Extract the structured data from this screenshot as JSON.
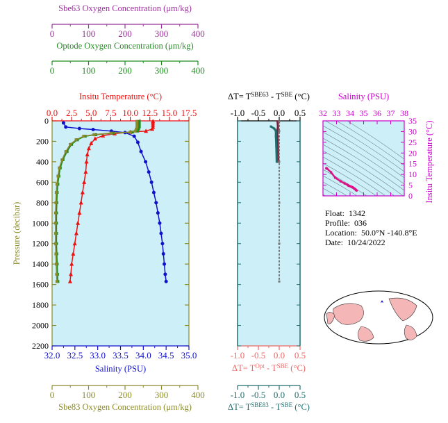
{
  "colors": {
    "sbe63": "#993399",
    "optode": "#1f8c1f",
    "temperature": "#ee1111",
    "salinity": "#1111cc",
    "sbe83": "#8a8a2a",
    "pressure": "#8a8a2a",
    "dt_opt": "#ee6666",
    "dt_sbe83": "#1f6e6e",
    "ts_axis": "#cc00cc",
    "panel_bg": "#cdeff8"
  },
  "info": {
    "float_label": "Float:",
    "float_value": "1342",
    "profile_label": "Profile:",
    "profile_value": "036",
    "location_label": "Location:",
    "location_value": "50.0°N  -140.8°E",
    "date_label": "Date:",
    "date_value": "10/24/2022"
  },
  "chart_data": [
    {
      "type": "line",
      "id": "main-profile",
      "y_axis": {
        "label": "Pressure (decibar)",
        "range": [
          0,
          2200
        ],
        "inverted": true,
        "ticks": [
          "0",
          "200",
          "400",
          "600",
          "800",
          "1000",
          "1200",
          "1400",
          "1600",
          "1800",
          "2000",
          "2200"
        ]
      },
      "axes": {
        "sbe63": {
          "label": "Sbe63 Oxygen Concentration (μm/kg)",
          "range": [
            0,
            400
          ],
          "ticks": [
            "0",
            "100",
            "200",
            "300",
            "400"
          ]
        },
        "optode": {
          "label": "Optode Oxygen Concentration (μm/kg)",
          "range": [
            0,
            400
          ],
          "ticks": [
            "0",
            "100",
            "200",
            "300",
            "400"
          ]
        },
        "temperature": {
          "label": "Insitu Temperature (°C)",
          "range": [
            0,
            17.5
          ],
          "ticks": [
            "0.0",
            "2.5",
            "5.0",
            "7.5",
            "10.0",
            "12.5",
            "15.0",
            "17.5"
          ]
        },
        "salinity": {
          "label": "Salinity (PSU)",
          "range": [
            32.0,
            35.0
          ],
          "ticks": [
            "32.0",
            "32.5",
            "33.0",
            "33.5",
            "34.0",
            "34.5",
            "35.0"
          ]
        },
        "sbe83": {
          "label": "Sbe83 Oxygen Concentration (μm/kg)",
          "range": [
            0,
            400
          ],
          "ticks": [
            "0",
            "100",
            "200",
            "300",
            "400"
          ]
        }
      },
      "series": [
        {
          "axis": "temperature",
          "marker": "triangle",
          "points": [
            [
              12.9,
              5
            ],
            [
              12.9,
              20
            ],
            [
              12.9,
              40
            ],
            [
              12.9,
              60
            ],
            [
              12.8,
              80
            ],
            [
              12.0,
              100
            ],
            [
              10.0,
              110
            ],
            [
              8.0,
              125
            ],
            [
              6.5,
              145
            ],
            [
              5.5,
              175
            ],
            [
              5.0,
              220
            ],
            [
              4.7,
              270
            ],
            [
              4.5,
              330
            ],
            [
              4.4,
              400
            ],
            [
              4.3,
              500
            ],
            [
              4.1,
              600
            ],
            [
              3.9,
              700
            ],
            [
              3.7,
              800
            ],
            [
              3.5,
              900
            ],
            [
              3.3,
              1000
            ],
            [
              3.1,
              1100
            ],
            [
              2.9,
              1200
            ],
            [
              2.7,
              1300
            ],
            [
              2.5,
              1400
            ],
            [
              2.4,
              1500
            ],
            [
              2.3,
              1570
            ]
          ]
        },
        {
          "axis": "salinity",
          "marker": "circle",
          "points": [
            [
              32.25,
              20
            ],
            [
              32.3,
              60
            ],
            [
              32.6,
              75
            ],
            [
              32.9,
              85
            ],
            [
              33.3,
              100
            ],
            [
              33.6,
              115
            ],
            [
              33.8,
              150
            ],
            [
              33.88,
              210
            ],
            [
              33.95,
              300
            ],
            [
              34.05,
              400
            ],
            [
              34.12,
              500
            ],
            [
              34.18,
              600
            ],
            [
              34.23,
              700
            ],
            [
              34.28,
              800
            ],
            [
              34.32,
              900
            ],
            [
              34.36,
              1000
            ],
            [
              34.39,
              1100
            ],
            [
              34.42,
              1200
            ],
            [
              34.44,
              1300
            ],
            [
              34.46,
              1400
            ],
            [
              34.48,
              1500
            ],
            [
              34.5,
              1570
            ]
          ]
        },
        {
          "axis": "sbe63",
          "marker": "square",
          "points": [
            [
              250,
              5
            ],
            [
              250,
              20
            ],
            [
              250,
              40
            ],
            [
              250,
              60
            ],
            [
              248,
              80
            ],
            [
              245,
              100
            ],
            [
              230,
              110
            ],
            [
              175,
              120
            ],
            [
              125,
              135
            ],
            [
              95,
              150
            ],
            [
              72,
              185
            ],
            [
              55,
              230
            ],
            [
              42,
              300
            ],
            [
              30,
              380
            ],
            [
              22,
              460
            ],
            [
              18,
              540
            ],
            [
              15,
              620
            ],
            [
              13,
              700
            ],
            [
              12,
              800
            ],
            [
              11,
              900
            ],
            [
              11,
              1000
            ],
            [
              11,
              1100
            ],
            [
              11,
              1200
            ],
            [
              12,
              1300
            ],
            [
              13,
              1400
            ],
            [
              14,
              1500
            ],
            [
              15,
              1570
            ]
          ]
        },
        {
          "axis": "optode",
          "marker": "square",
          "points": [
            [
              255,
              5
            ],
            [
              255,
              20
            ],
            [
              255,
              40
            ],
            [
              255,
              60
            ],
            [
              253,
              80
            ],
            [
              250,
              100
            ],
            [
              235,
              110
            ],
            [
              178,
              120
            ],
            [
              128,
              135
            ],
            [
              97,
              150
            ],
            [
              74,
              185
            ],
            [
              57,
              230
            ],
            [
              44,
              300
            ],
            [
              32,
              380
            ],
            [
              24,
              460
            ],
            [
              20,
              540
            ],
            [
              17,
              620
            ],
            [
              15,
              700
            ],
            [
              14,
              800
            ],
            [
              13,
              900
            ],
            [
              13,
              1000
            ],
            [
              13,
              1100
            ],
            [
              13,
              1200
            ],
            [
              14,
              1300
            ],
            [
              15,
              1400
            ],
            [
              16,
              1500
            ],
            [
              17,
              1570
            ]
          ]
        },
        {
          "axis": "sbe83",
          "marker": "square",
          "points": [
            [
              248,
              5
            ],
            [
              248,
              20
            ],
            [
              248,
              40
            ],
            [
              248,
              60
            ],
            [
              246,
              80
            ],
            [
              243,
              100
            ],
            [
              228,
              110
            ],
            [
              172,
              120
            ],
            [
              122,
              135
            ],
            [
              92,
              150
            ],
            [
              70,
              185
            ],
            [
              53,
              230
            ],
            [
              40,
              300
            ],
            [
              29,
              380
            ],
            [
              21,
              460
            ],
            [
              17,
              540
            ],
            [
              14,
              620
            ],
            [
              12,
              700
            ],
            [
              11,
              800
            ],
            [
              10,
              900
            ],
            [
              10,
              1000
            ],
            [
              10,
              1100
            ],
            [
              10,
              1200
            ],
            [
              11,
              1300
            ],
            [
              12,
              1400
            ],
            [
              13,
              1500
            ],
            [
              14,
              1570
            ]
          ]
        }
      ]
    },
    {
      "type": "line",
      "id": "delta-t",
      "x_range": [
        -1.0,
        0.5
      ],
      "top_axis": {
        "label": "ΔT= T^SBE63 - T^SBE (°C)",
        "ticks": [
          "-1.0",
          "-0.5",
          "0.0",
          "0.5"
        ]
      },
      "bottom_axis_1": {
        "label": "ΔT= T^Opt - T^SBE (°C)",
        "ticks": [
          "-1.0",
          "-0.5",
          "0.0",
          "0.5"
        ]
      },
      "bottom_axis_2": {
        "label": "ΔT= T^SBE83 - T^SBE (°C)",
        "ticks": [
          "-1.0",
          "-0.5",
          "0.0",
          "0.5"
        ]
      },
      "y_range": [
        0,
        2200
      ],
      "series": [
        {
          "axis": "sbe63",
          "points": [
            [
              -0.04,
              5
            ],
            [
              -0.03,
              60
            ],
            [
              -0.05,
              100
            ],
            [
              -0.04,
              150
            ],
            [
              -0.03,
              250
            ],
            [
              -0.02,
              400
            ]
          ]
        },
        {
          "axis": "optode",
          "points": [
            [
              0.0,
              5
            ],
            [
              0.0,
              100
            ],
            [
              0.0,
              400
            ],
            [
              0.0,
              800
            ],
            [
              0.0,
              1200
            ],
            [
              0.0,
              1570
            ]
          ]
        },
        {
          "axis": "sbe83",
          "points": [
            [
              -0.2,
              55
            ],
            [
              -0.12,
              75
            ],
            [
              -0.08,
              100
            ],
            [
              -0.08,
              150
            ],
            [
              -0.07,
              250
            ],
            [
              -0.06,
              400
            ]
          ]
        }
      ]
    },
    {
      "type": "scatter",
      "id": "ts-diagram",
      "x_axis": {
        "label": "Salinity (PSU)",
        "range": [
          32,
          38
        ],
        "ticks": [
          "32",
          "33",
          "34",
          "35",
          "36",
          "37",
          "38"
        ]
      },
      "y_axis": {
        "label": "Insitu Temperature (°C)",
        "range": [
          0,
          35
        ],
        "ticks": [
          "0",
          "5",
          "10",
          "15",
          "20",
          "25",
          "30",
          "35"
        ]
      },
      "series": [
        {
          "points": [
            [
              32.25,
              12.9
            ],
            [
              32.3,
              12.7
            ],
            [
              32.6,
              11.0
            ],
            [
              32.9,
              8.5
            ],
            [
              33.3,
              6.8
            ],
            [
              33.6,
              5.8
            ],
            [
              33.8,
              5.2
            ],
            [
              33.88,
              4.8
            ],
            [
              33.95,
              4.6
            ],
            [
              34.05,
              4.4
            ],
            [
              34.12,
              4.2
            ],
            [
              34.18,
              4.0
            ],
            [
              34.23,
              3.8
            ],
            [
              34.28,
              3.6
            ],
            [
              34.32,
              3.4
            ],
            [
              34.36,
              3.2
            ],
            [
              34.4,
              3.0
            ],
            [
              34.44,
              2.7
            ],
            [
              34.48,
              2.5
            ]
          ]
        }
      ]
    }
  ]
}
